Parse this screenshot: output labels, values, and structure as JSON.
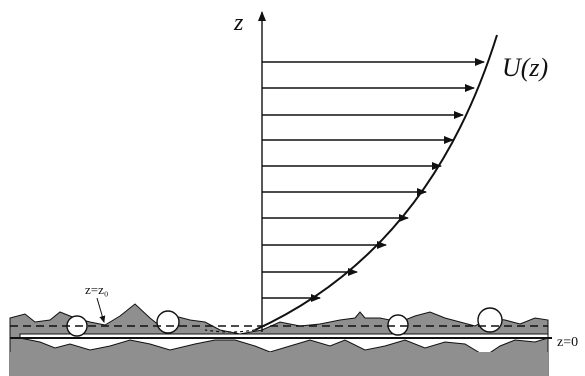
{
  "labels": {
    "z_axis": "z",
    "profile": "U(z)",
    "roughness_height": "z=z₀",
    "surface": "z=0"
  }
}
